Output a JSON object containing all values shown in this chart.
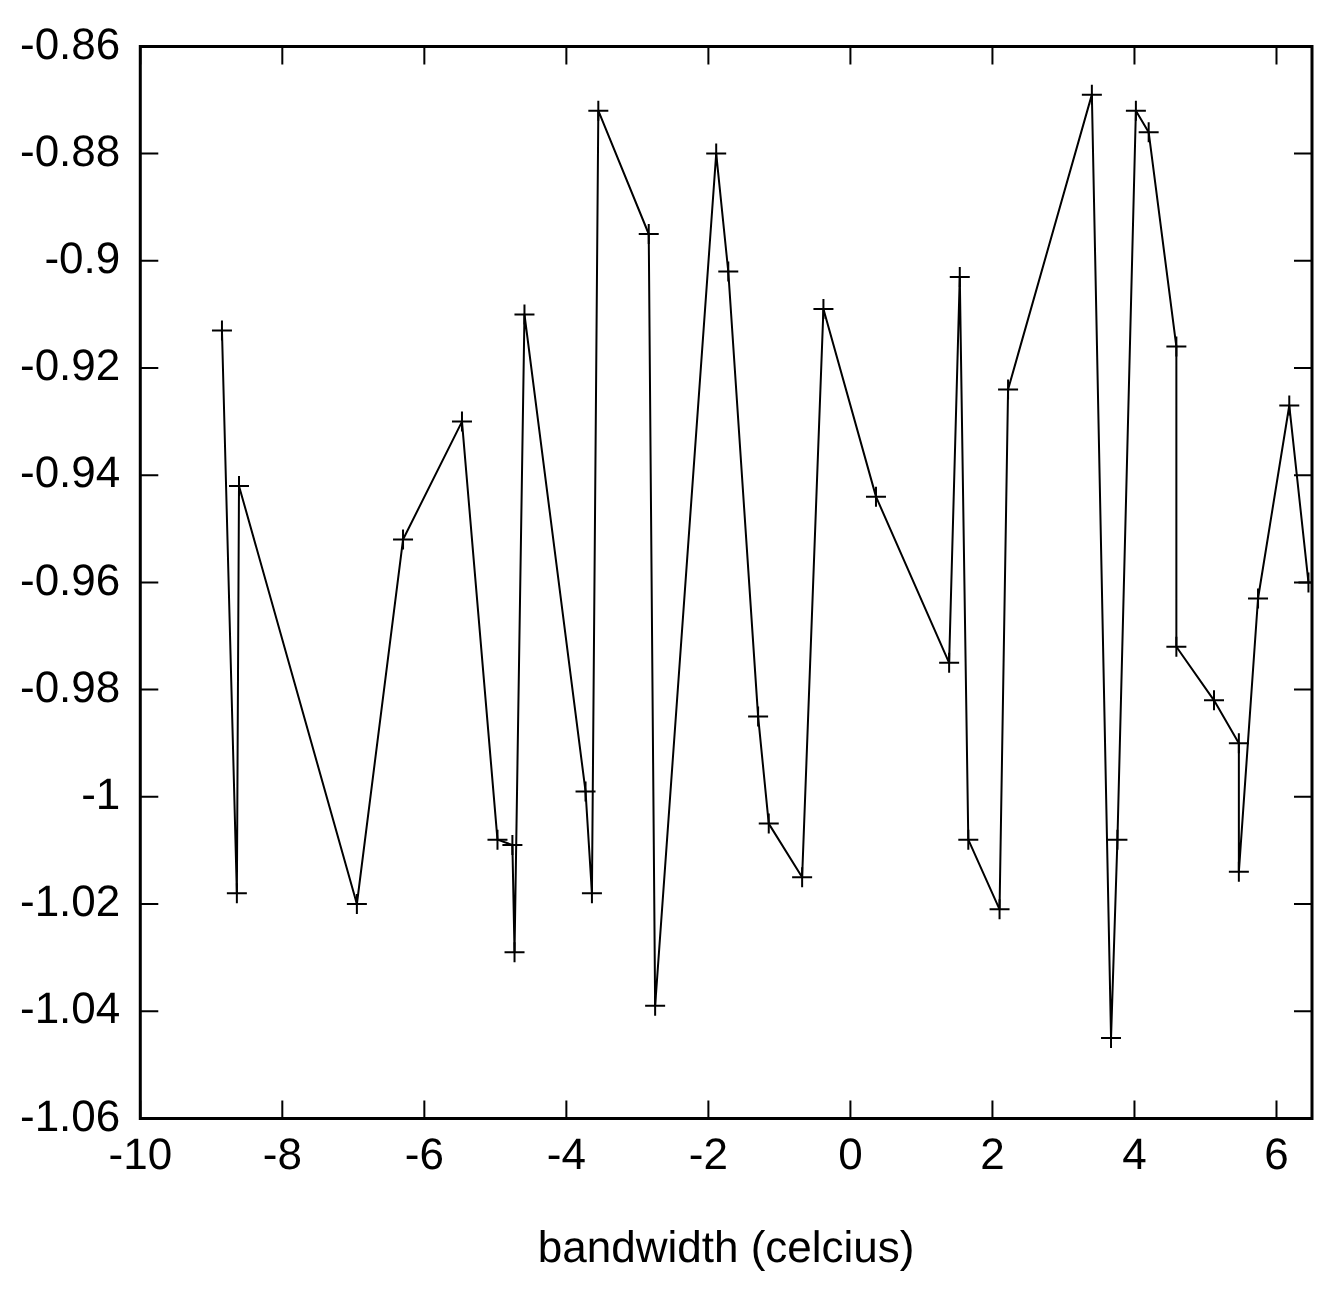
{
  "chart_data": {
    "type": "line",
    "xlabel": "bandwidth (celcius)",
    "color": "#000000",
    "marker": "cross",
    "line_style": "solid",
    "x": [
      -8.85,
      -8.64,
      -8.61,
      -6.95,
      -6.3,
      -5.47,
      -4.97,
      -4.76,
      -4.73,
      -4.59,
      -3.73,
      -3.64,
      -3.55,
      -2.84,
      -2.75,
      -1.89,
      -1.72,
      -1.3,
      -1.15,
      -0.68,
      -0.38,
      0.36,
      1.39,
      1.54,
      1.66,
      2.1,
      2.22,
      3.4,
      3.67,
      3.76,
      4.02,
      4.2,
      4.59,
      4.59,
      5.12,
      5.47,
      5.47,
      5.74,
      6.18,
      6.45
    ],
    "values": [
      -0.913,
      -1.018,
      -0.942,
      -1.02,
      -0.952,
      -0.93,
      -1.008,
      -1.009,
      -1.029,
      -0.91,
      -0.999,
      -1.018,
      -0.872,
      -0.895,
      -1.039,
      -0.88,
      -0.902,
      -0.985,
      -1.005,
      -1.015,
      -0.909,
      -0.944,
      -0.975,
      -0.903,
      -1.008,
      -1.021,
      -0.924,
      -0.869,
      -1.045,
      -1.008,
      -0.872,
      -0.876,
      -0.916,
      -0.972,
      -0.982,
      -0.99,
      -1.014,
      -0.963,
      -0.927,
      -0.96
    ],
    "xlim": [
      -10,
      6.5
    ],
    "ylim": [
      -1.06,
      -0.86
    ],
    "xticks": [
      -10,
      -8,
      -6,
      -4,
      -2,
      0,
      2,
      4,
      6
    ],
    "yticks": [
      -1.06,
      -1.04,
      -1.02,
      -1,
      -0.98,
      -0.96,
      -0.94,
      -0.92,
      -0.9,
      -0.88,
      -0.86
    ]
  }
}
